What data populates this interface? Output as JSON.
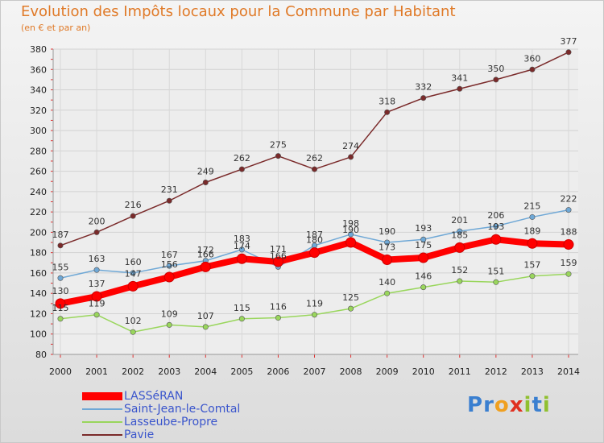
{
  "title": "Evolution des Impôts locaux pour la Commune par Habitant",
  "subtitle": "(en € et par an)",
  "chart_data": {
    "type": "line",
    "title": "Evolution des Impôts locaux pour la Commune par Habitant",
    "subtitle": "(en € et par an)",
    "xlabel": "",
    "ylabel": "",
    "categories": [
      "2000",
      "2001",
      "2002",
      "2003",
      "2004",
      "2005",
      "2006",
      "2007",
      "2008",
      "2009",
      "2010",
      "2011",
      "2012",
      "2013",
      "2014"
    ],
    "ylim": [
      80,
      380
    ],
    "yticks": [
      80,
      100,
      120,
      140,
      160,
      180,
      200,
      220,
      240,
      260,
      280,
      300,
      320,
      340,
      360,
      380
    ],
    "grid": true,
    "legend_position": "bottom-left",
    "series": [
      {
        "name": "LASSéRAN",
        "color": "#ff0000",
        "values": [
          130,
          137,
          147,
          156,
          166,
          174,
          171,
          180,
          190,
          173,
          175,
          185,
          193,
          189,
          188
        ]
      },
      {
        "name": "Saint-Jean-le-Comtal",
        "color": "#6fa8d6",
        "values": [
          155,
          163,
          160,
          167,
          172,
          183,
          166,
          187,
          198,
          190,
          193,
          201,
          206,
          215,
          222
        ]
      },
      {
        "name": "Lasseube-Propre",
        "color": "#99d65c",
        "values": [
          115,
          119,
          102,
          109,
          107,
          115,
          116,
          119,
          125,
          140,
          146,
          152,
          151,
          157,
          159
        ]
      },
      {
        "name": "Pavie",
        "color": "#7a2a2a",
        "values": [
          187,
          200,
          216,
          231,
          249,
          262,
          275,
          262,
          274,
          318,
          332,
          341,
          350,
          360,
          377
        ]
      }
    ]
  },
  "logo": {
    "text": "Proxiti",
    "letters": [
      "P",
      "r",
      "o",
      "x",
      "i",
      "t",
      "i"
    ],
    "colors": [
      "#3a7fd0",
      "#3a7fd0",
      "#f0a020",
      "#e03020",
      "#90c030",
      "#3a7fd0",
      "#90c030"
    ]
  }
}
